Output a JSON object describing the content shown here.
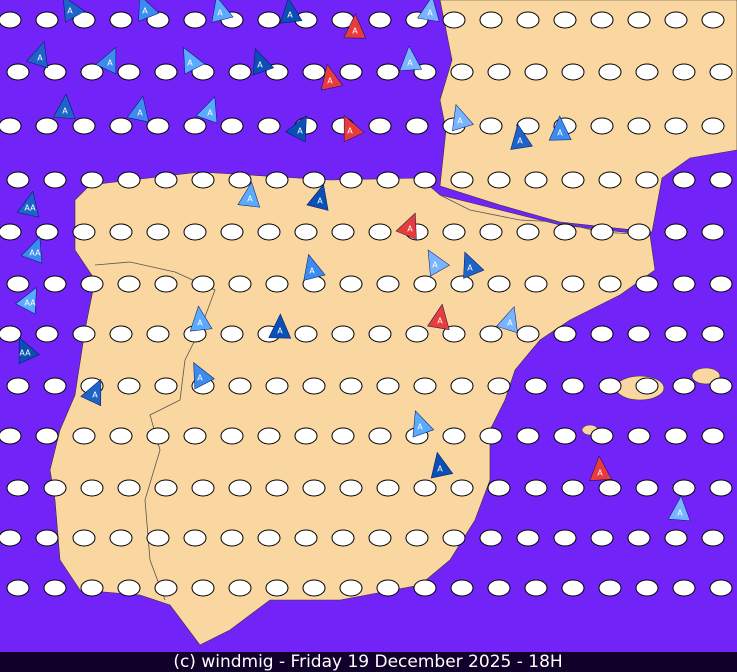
{
  "footer": {
    "text": "(c) windmig - Friday 19 December 2025 - 18H"
  },
  "markers": [
    {
      "label": "A"
    },
    {
      "label": "A"
    },
    {
      "label": "A"
    },
    {
      "label": "A"
    },
    {
      "label": "A"
    },
    {
      "label": "A"
    },
    {
      "label": "A"
    },
    {
      "label": "A"
    },
    {
      "label": "A"
    },
    {
      "label": "A"
    },
    {
      "label": "A"
    },
    {
      "label": "A"
    },
    {
      "label": "A"
    },
    {
      "label": "A"
    },
    {
      "label": "A"
    },
    {
      "label": "A"
    },
    {
      "label": "A"
    },
    {
      "label": "A"
    },
    {
      "label": "A"
    },
    {
      "label": "A"
    },
    {
      "label": "A"
    },
    {
      "label": "A"
    },
    {
      "label": "A"
    },
    {
      "label": "A"
    },
    {
      "label": "A"
    },
    {
      "label": "A"
    },
    {
      "label": "A"
    },
    {
      "label": "A"
    },
    {
      "label": "A"
    },
    {
      "label": "A"
    },
    {
      "label": "A"
    },
    {
      "label": "A"
    },
    {
      "label": "A"
    },
    {
      "label": "A"
    },
    {
      "label": "A"
    },
    {
      "label": "A"
    },
    {
      "label": "AA"
    },
    {
      "label": "AA"
    },
    {
      "label": "AA"
    },
    {
      "label": "AA"
    }
  ]
}
